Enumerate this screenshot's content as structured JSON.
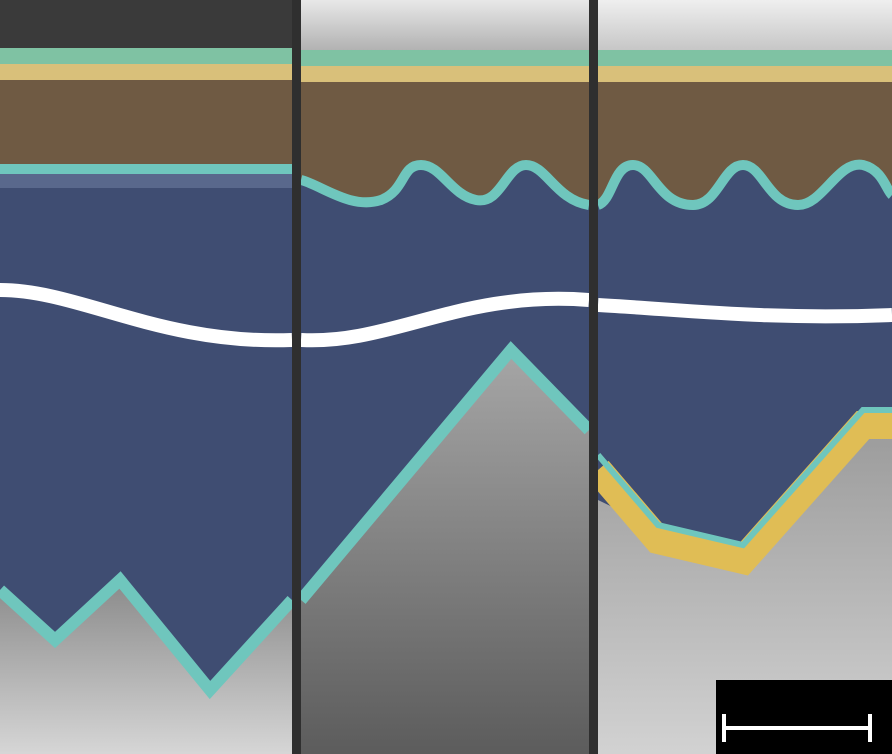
{
  "figure": {
    "panel_count": 3,
    "layer_colors": {
      "top_contact": "#7fc2a3",
      "gold_layer": "#d9c07a",
      "perovskite": "#6f5a43",
      "transparent_conductor": "#6fc6bd",
      "absorber_silicon": "#3f4d72",
      "bottom_gold": "#e0bd55",
      "textured_substrate": "#c8c8c8",
      "background_dark": "#3a3a3a",
      "break_line": "#ffffff",
      "scale_bar_bg": "#000000",
      "scale_bar_line": "#ffffff"
    },
    "panels": [
      {
        "name": "left",
        "interface_shape": "flat"
      },
      {
        "name": "middle",
        "interface_shape": "wavy"
      },
      {
        "name": "right",
        "interface_shape": "wavy",
        "back_layer": "gold"
      }
    ],
    "scale_bar": {
      "label": ""
    }
  }
}
